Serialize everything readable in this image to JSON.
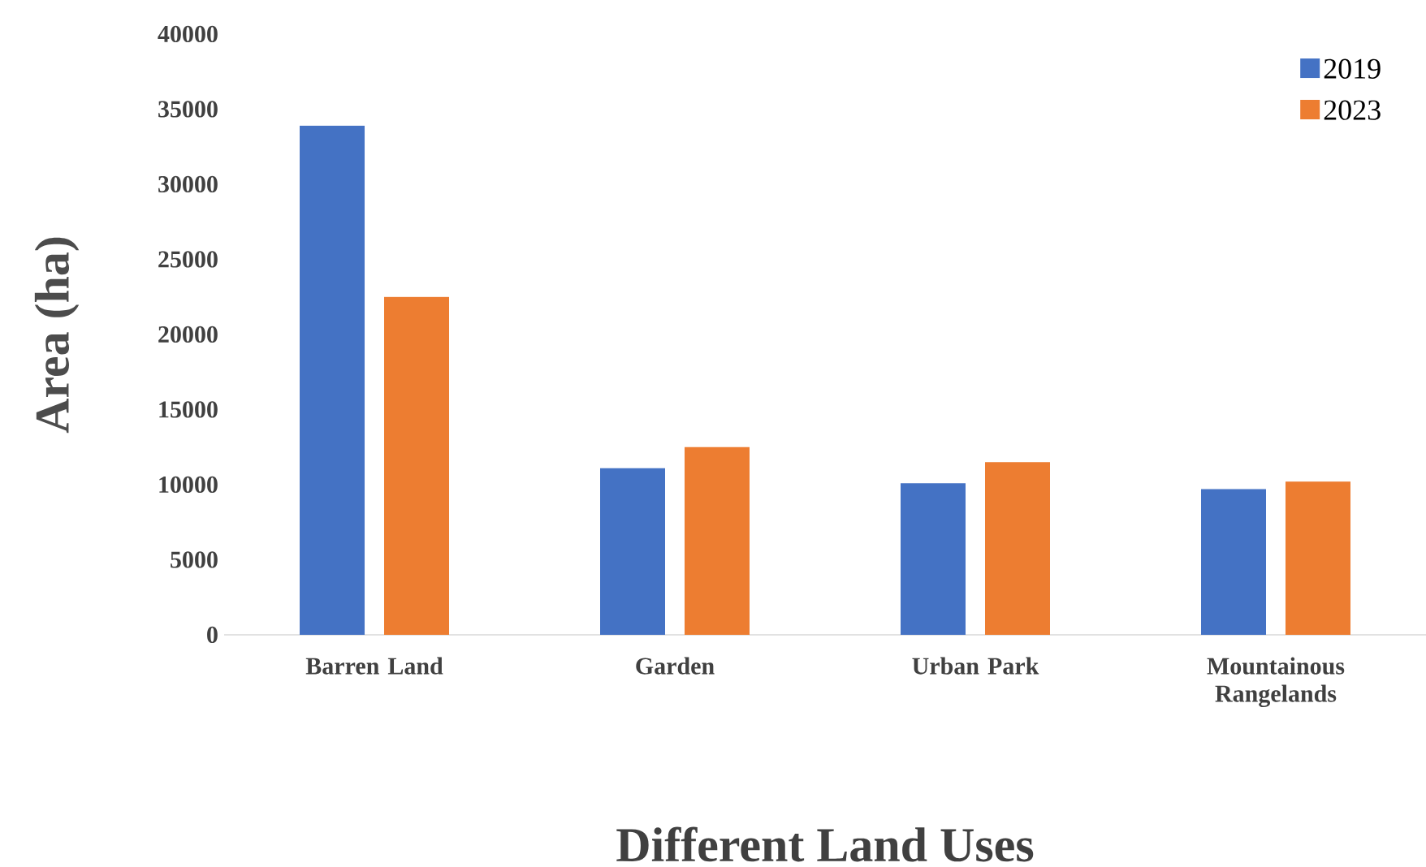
{
  "chart_data": {
    "type": "bar",
    "xlabel": "Different Land Uses",
    "ylabel": "Area (ha)",
    "categories": [
      "Barren Land",
      "Garden",
      "Urban Park",
      "Mountainous Rangelands"
    ],
    "series": [
      {
        "name": "2019",
        "color": "#4472c4",
        "values": [
          33900,
          11100,
          10100,
          9700
        ]
      },
      {
        "name": "2023",
        "color": "#ed7d31",
        "values": [
          22500,
          12500,
          11500,
          10200
        ]
      }
    ],
    "ylim": [
      0,
      40000
    ],
    "yticks": [
      0,
      5000,
      10000,
      15000,
      20000,
      25000,
      30000,
      35000,
      40000
    ],
    "grid": false,
    "legend": "top right"
  }
}
